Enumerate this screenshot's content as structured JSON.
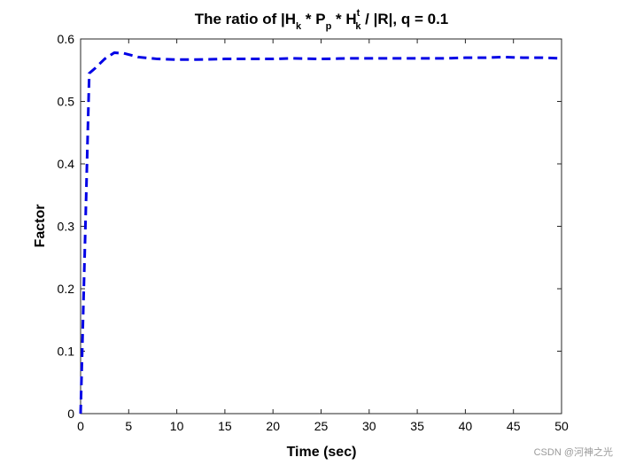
{
  "chart_data": {
    "type": "line",
    "title": {
      "prefix": "The ratio of |H",
      "sub1": "k",
      "mid1": " * P",
      "sub2": "p",
      "mid2": " * H",
      "sup3": "t",
      "sub3": "k",
      "suffix": " / |R|, q = 0.1"
    },
    "xlabel": "Time (sec)",
    "ylabel": "Factor",
    "xlim": [
      0,
      50
    ],
    "ylim": [
      0,
      0.6
    ],
    "xticks": [
      "0",
      "5",
      "10",
      "15",
      "20",
      "25",
      "30",
      "35",
      "40",
      "45",
      "50"
    ],
    "yticks": [
      "0",
      "0.1",
      "0.2",
      "0.3",
      "0.4",
      "0.5",
      "0.6"
    ],
    "grid": false,
    "series": [
      {
        "name": "ratio",
        "color": "#0000e6",
        "style": "dashed",
        "x": [
          0,
          0.5,
          0.9,
          1.5,
          2.5,
          3.5,
          4.5,
          6,
          8,
          10,
          12,
          15,
          18,
          20,
          22,
          25,
          28,
          30,
          32,
          35,
          38,
          40,
          42,
          44,
          46,
          48,
          50
        ],
        "y": [
          0,
          0.3,
          0.545,
          0.553,
          0.568,
          0.578,
          0.577,
          0.571,
          0.568,
          0.567,
          0.567,
          0.568,
          0.568,
          0.568,
          0.569,
          0.568,
          0.569,
          0.569,
          0.569,
          0.569,
          0.569,
          0.57,
          0.57,
          0.571,
          0.57,
          0.57,
          0.569
        ]
      }
    ]
  },
  "watermark": "CSDN @河神之光"
}
